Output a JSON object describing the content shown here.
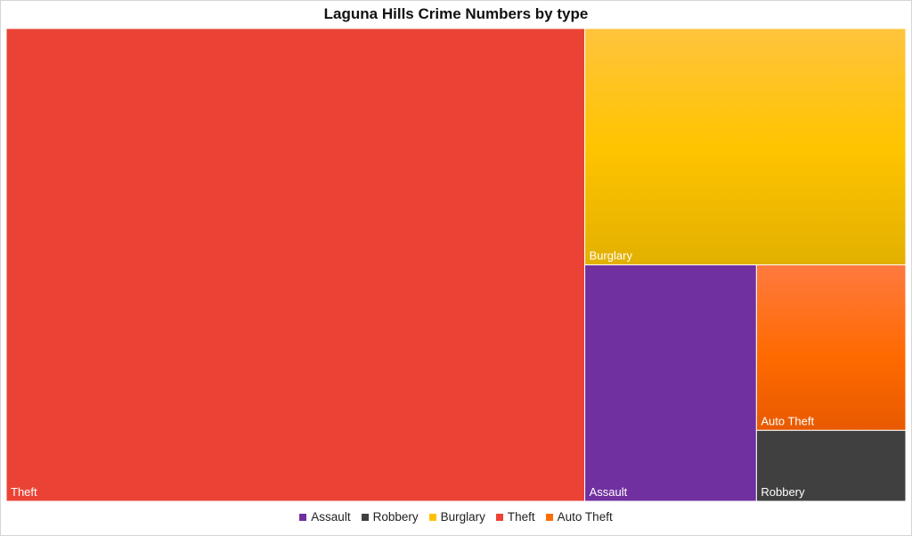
{
  "chart_data": {
    "type": "treemap",
    "title": "Laguna Hills Crime Numbers by type",
    "items": [
      {
        "label": "Theft",
        "value": 310,
        "color": "#EA4335"
      },
      {
        "label": "Burglary",
        "value": 86,
        "color": "#FFC107"
      },
      {
        "label": "Assault",
        "value": 46,
        "color": "#7030A0"
      },
      {
        "label": "Auto Theft",
        "value": 28,
        "color": "#FF6D00"
      },
      {
        "label": "Robbery",
        "value": 12,
        "color": "#404040"
      }
    ],
    "legend": [
      {
        "label": "Assault",
        "color": "#7030A0"
      },
      {
        "label": "Robbery",
        "color": "#404040"
      },
      {
        "label": "Burglary",
        "color": "#FFC107"
      },
      {
        "label": "Theft",
        "color": "#EA4335"
      },
      {
        "label": "Auto Theft",
        "color": "#FF6D00"
      }
    ],
    "legend_position": "bottom"
  }
}
